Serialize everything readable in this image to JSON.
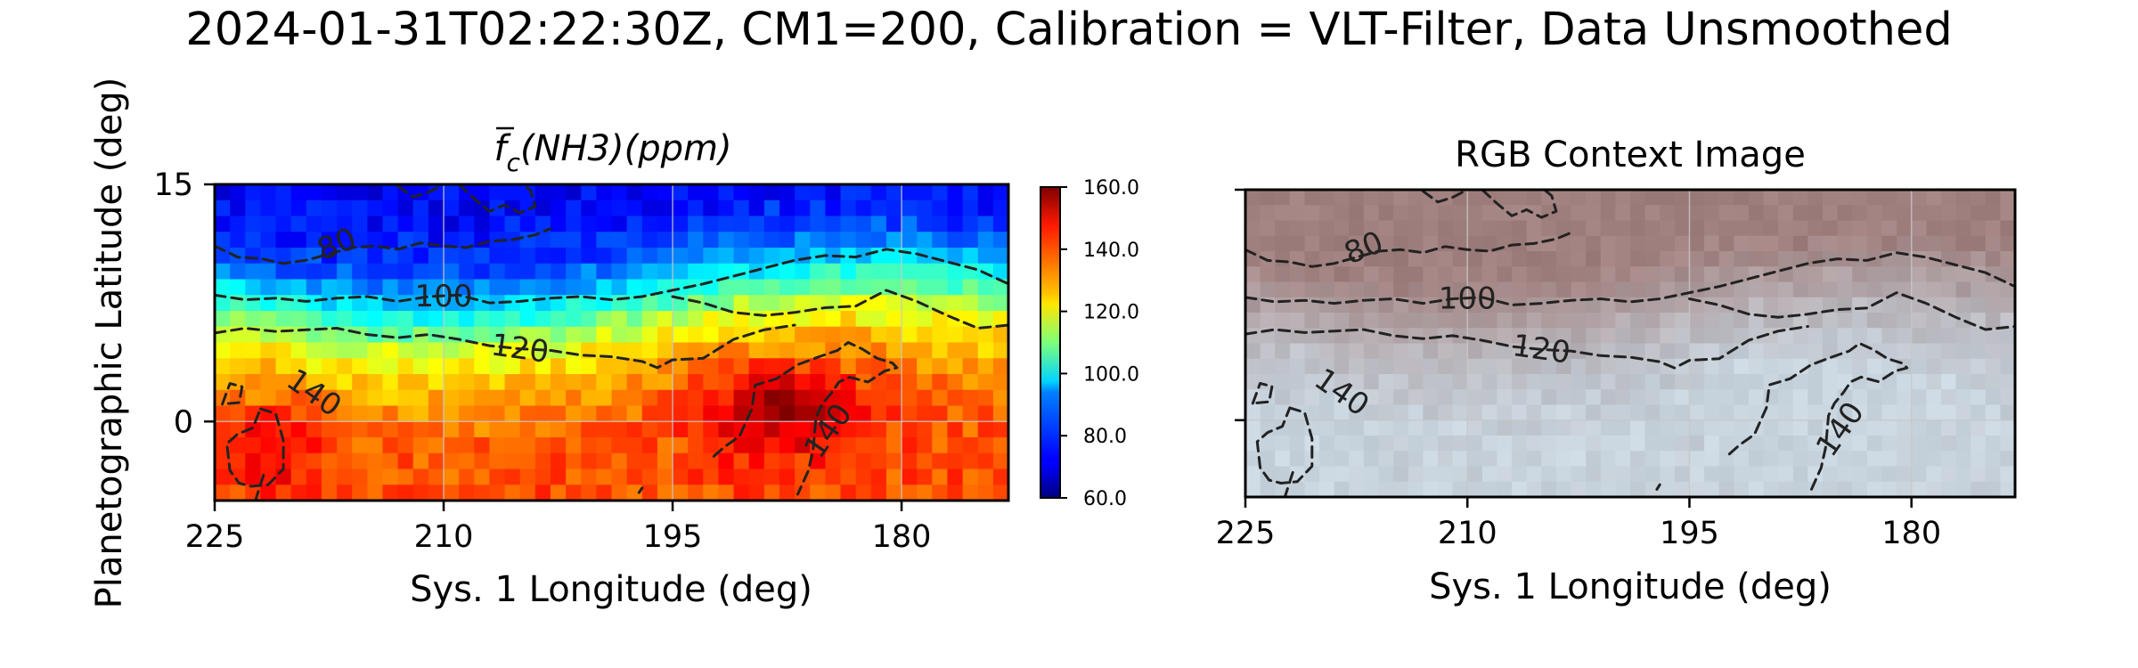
{
  "figure": {
    "suptitle": "2024-01-31T02:22:30Z, CM1=200, Calibration = VLT-Filter, Data Unsmoothed"
  },
  "chart_data": [
    {
      "type": "heatmap",
      "title_base": "f",
      "title_sub": "c",
      "title_rest": "(NH3)(ppm)",
      "xlabel": "Sys. 1 Longitude (deg)",
      "ylabel": "Planetographic Latitude (deg)",
      "xlim": [
        225,
        173
      ],
      "ylim": [
        -5,
        15
      ],
      "xticks": [
        225,
        210,
        195,
        180
      ],
      "yticks": [
        15,
        0
      ],
      "grid": true,
      "colormap": "jet",
      "colorbar": {
        "vmin": 60,
        "vmax": 160,
        "ticks": [
          "160.0",
          "140.0",
          "120.0",
          "100.0",
          "80.0",
          "60.0"
        ]
      },
      "field_profile": [
        {
          "lat": 15,
          "ppm": 72
        },
        {
          "lat": 12,
          "ppm": 76
        },
        {
          "lat": 10,
          "ppm": 84
        },
        {
          "lat": 8,
          "ppm": 100
        },
        {
          "lat": 6,
          "ppm": 118
        },
        {
          "lat": 4,
          "ppm": 128
        },
        {
          "lat": 2,
          "ppm": 134
        },
        {
          "lat": 0,
          "ppm": 138
        },
        {
          "lat": -3,
          "ppm": 140
        },
        {
          "lat": -5,
          "ppm": 140
        }
      ],
      "contour_levels": [
        {
          "level": 80,
          "label": "80"
        },
        {
          "level": 100,
          "label": "100"
        },
        {
          "level": 120,
          "label": "120"
        },
        {
          "level": 140,
          "label": "140"
        }
      ]
    },
    {
      "type": "image",
      "title": "RGB Context Image",
      "xlabel": "Sys. 1 Longitude (deg)",
      "xlim": [
        225,
        173
      ],
      "ylim": [
        -5,
        15
      ],
      "xticks": [
        225,
        210,
        195,
        180
      ],
      "grid": true,
      "contour_levels": [
        {
          "level": 80,
          "label": "80"
        },
        {
          "level": 100,
          "label": "100"
        },
        {
          "level": 120,
          "label": "120"
        },
        {
          "level": 140,
          "label": "140"
        }
      ]
    }
  ]
}
